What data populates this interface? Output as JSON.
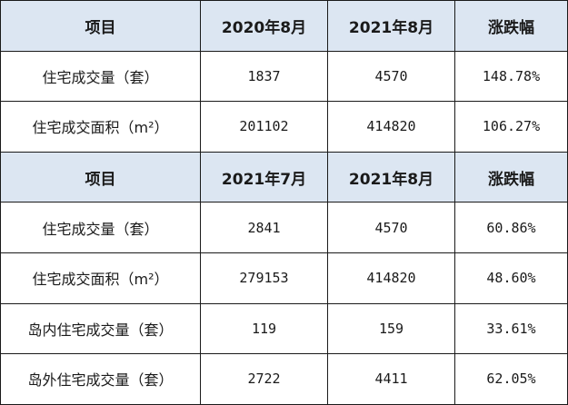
{
  "tables": [
    {
      "header": [
        "项目",
        "2020年8月",
        "2021年8月",
        "涨跌幅"
      ],
      "rows": [
        [
          "住宅成交量（套）",
          "1837",
          "4570",
          "148.78%"
        ],
        [
          "住宅成交面积（m²）",
          "201102",
          "414820",
          "106.27%"
        ]
      ]
    },
    {
      "header": [
        "项目",
        "2021年7月",
        "2021年8月",
        "涨跌幅"
      ],
      "rows": [
        [
          "住宅成交量（套）",
          "2841",
          "4570",
          "60.86%"
        ],
        [
          "住宅成交面积（m²）",
          "279153",
          "414820",
          "48.60%"
        ],
        [
          "岛内住宅成交量（套）",
          "119",
          "159",
          "33.61%"
        ],
        [
          "岛外住宅成交量（套）",
          "2722",
          "4411",
          "62.05%"
        ]
      ]
    }
  ]
}
